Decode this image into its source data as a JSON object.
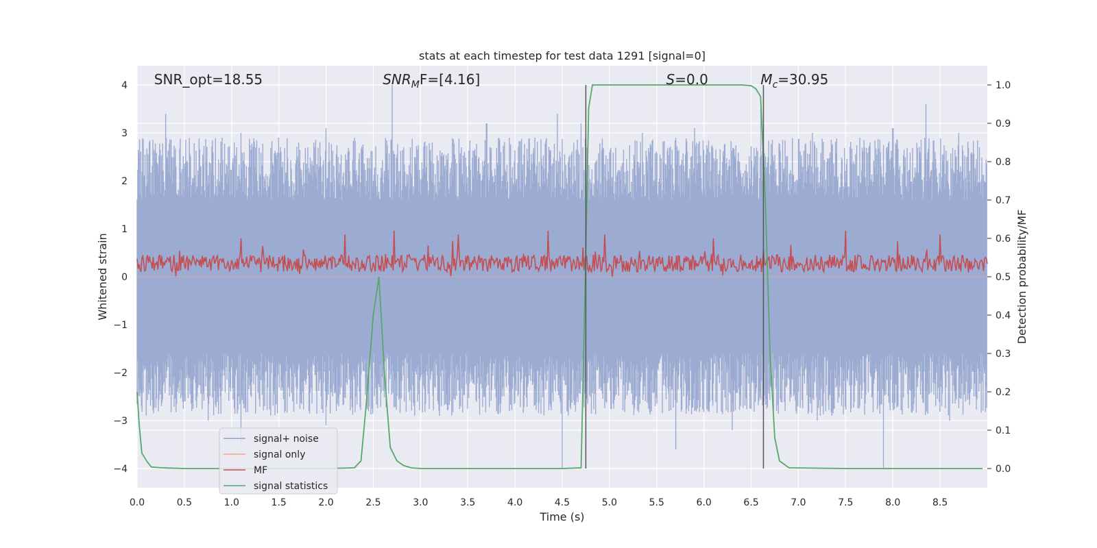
{
  "chart_data": {
    "type": "line",
    "title": "stats at each timestep for test data 1291 [signal=0]",
    "xlabel": "Time (s)",
    "ylabel_left": "Whitened strain",
    "ylabel_right": "Detection probability/MF",
    "xlim": [
      0.0,
      9.0
    ],
    "ylim_left": [
      -4.4,
      4.4
    ],
    "ylim_right": [
      -0.05,
      1.05
    ],
    "xticks": [
      "0.0",
      "0.5",
      "1.0",
      "1.5",
      "2.0",
      "2.5",
      "3.0",
      "3.5",
      "4.0",
      "4.5",
      "5.0",
      "5.5",
      "6.0",
      "6.5",
      "7.0",
      "7.5",
      "8.0",
      "8.5"
    ],
    "yticks_left": [
      "4",
      "3",
      "2",
      "1",
      "0",
      "−1",
      "−2",
      "−3",
      "−4"
    ],
    "yticks_right": [
      "1.0",
      "0.9",
      "0.8",
      "0.7",
      "0.6",
      "0.5",
      "0.4",
      "0.3",
      "0.2",
      "0.1",
      "0.0"
    ],
    "grid": true,
    "annotations": [
      {
        "id": "snr-opt",
        "text": "SNR_opt=18.55",
        "x": 0.18,
        "y": 4.1
      },
      {
        "id": "snr-mf",
        "prefix": "SNR",
        "sub": "M",
        "suffix": "F=[4.16]",
        "x": 2.6,
        "y": 4.1
      },
      {
        "id": "s-val",
        "prefix": "S",
        "suffix": "=0.0",
        "x": 5.6,
        "y": 4.1
      },
      {
        "id": "mc-val",
        "prefix": "M",
        "sub": "c",
        "suffix": "=30.95",
        "x": 6.6,
        "y": 4.1
      }
    ],
    "vlines": [
      {
        "name": "vline-start",
        "x": 4.75,
        "y_range": [
          -4.0,
          4.0
        ],
        "color": "#555555"
      },
      {
        "name": "vline-end",
        "x": 6.63,
        "y_range": [
          -4.0,
          4.0
        ],
        "color": "#555555"
      }
    ],
    "legend": {
      "placement": "lower-left",
      "entries": [
        {
          "label": "signal+ noise",
          "color": "#8da0cb"
        },
        {
          "label": "signal only",
          "color": "#f0a58a"
        },
        {
          "label": "MF",
          "color": "#c44e52"
        },
        {
          "label": "signal statistics",
          "color": "#55a868"
        }
      ]
    },
    "series": [
      {
        "name": "signal+ noise",
        "axis": "left",
        "style": "dense-noise",
        "color": "#8da0cb",
        "x_range": [
          0.0,
          9.0
        ],
        "n_points": 1400,
        "typical_range": [
          -1.6,
          1.6
        ],
        "peak_range": [
          -4.0,
          4.0
        ],
        "peaks": [
          [
            0.2,
            2.4
          ],
          [
            0.3,
            3.4
          ],
          [
            0.9,
            2.9
          ],
          [
            1.1,
            3.0
          ],
          [
            1.5,
            2.9
          ],
          [
            2.0,
            3.1
          ],
          [
            2.3,
            2.9
          ],
          [
            2.7,
            4.0
          ],
          [
            3.1,
            2.6
          ],
          [
            3.7,
            3.2
          ],
          [
            4.45,
            3.4
          ],
          [
            4.7,
            3.2
          ],
          [
            5.35,
            3.0
          ],
          [
            5.9,
            3.1
          ],
          [
            6.6,
            3.5
          ],
          [
            7.15,
            3.0
          ],
          [
            7.65,
            2.9
          ],
          [
            8.0,
            3.1
          ],
          [
            8.35,
            3.6
          ],
          [
            8.7,
            3.0
          ],
          [
            0.75,
            -3.0
          ],
          [
            1.1,
            -3.5
          ],
          [
            2.0,
            -3.1
          ],
          [
            3.2,
            -2.9
          ],
          [
            4.5,
            -4.0
          ],
          [
            5.7,
            -3.6
          ],
          [
            6.3,
            -3.2
          ],
          [
            7.2,
            -3.0
          ],
          [
            7.9,
            -4.0
          ],
          [
            8.6,
            -3.0
          ]
        ]
      },
      {
        "name": "signal only",
        "axis": "left",
        "color": "#f0a58a",
        "x": [
          0.0,
          9.0
        ],
        "y": [
          0.0,
          0.0
        ]
      },
      {
        "name": "MF",
        "axis": "right",
        "style": "noisy-band",
        "color": "#c44e52",
        "x_range": [
          0.0,
          9.0
        ],
        "n_points": 900,
        "baseline": 0.535,
        "spread": [
          0.5,
          0.6
        ],
        "peaks": [
          [
            1.1,
            0.6
          ],
          [
            2.2,
            0.61
          ],
          [
            2.72,
            0.62
          ],
          [
            3.4,
            0.61
          ],
          [
            4.35,
            0.62
          ],
          [
            4.95,
            0.61
          ],
          [
            6.1,
            0.6
          ],
          [
            7.5,
            0.62
          ],
          [
            8.5,
            0.61
          ]
        ]
      },
      {
        "name": "signal statistics",
        "axis": "right",
        "color": "#55a868",
        "x": [
          0.0,
          0.02,
          0.05,
          0.1,
          0.15,
          0.25,
          0.5,
          1.0,
          1.5,
          2.0,
          2.3,
          2.37,
          2.43,
          2.5,
          2.56,
          2.62,
          2.68,
          2.75,
          2.82,
          2.9,
          3.0,
          3.5,
          4.0,
          4.5,
          4.7,
          4.74,
          4.78,
          4.82,
          5.0,
          5.5,
          6.0,
          6.4,
          6.5,
          6.55,
          6.6,
          6.65,
          6.7,
          6.75,
          6.8,
          6.9,
          7.5,
          8.0,
          8.5,
          8.95
        ],
        "y": [
          0.2,
          0.12,
          0.04,
          0.02,
          0.004,
          0.002,
          0.0,
          0.0,
          0.0,
          0.0,
          0.002,
          0.02,
          0.18,
          0.4,
          0.5,
          0.24,
          0.055,
          0.02,
          0.008,
          0.002,
          0.0,
          0.0,
          0.0,
          0.0,
          0.002,
          0.45,
          0.94,
          1.0,
          1.0,
          1.0,
          1.0,
          1.0,
          0.998,
          0.99,
          0.97,
          0.7,
          0.3,
          0.08,
          0.02,
          0.002,
          0.0,
          0.0,
          0.0,
          0.0
        ]
      }
    ]
  }
}
